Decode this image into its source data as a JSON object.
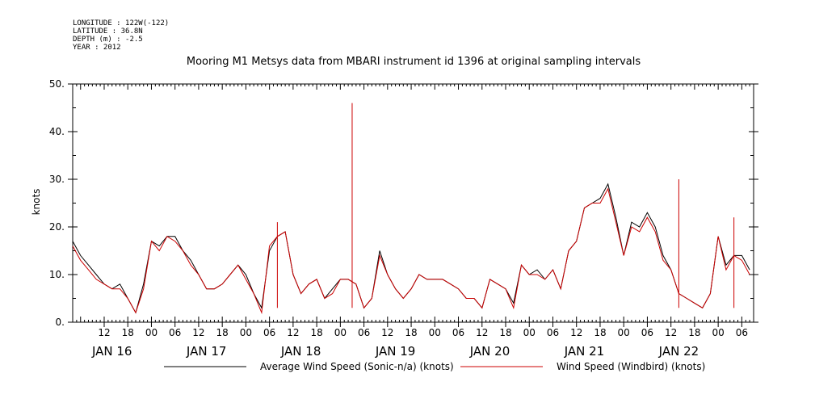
{
  "meta": {
    "longitude": "LONGITUDE : 122W(-122)",
    "latitude": "LATITUDE : 36.8N",
    "depth": "DEPTH (m) : -2.5",
    "year": "YEAR : 2012"
  },
  "chart_data": {
    "type": "line",
    "title": "Mooring M1 Metsys data from MBARI instrument id 1396 at original sampling intervals",
    "xlabel": "",
    "ylabel": "knots",
    "ylim": [
      0,
      50
    ],
    "xlim_hours_since_jan16_00": [
      -20,
      153
    ],
    "yticks": [
      "0.",
      "10.",
      "20.",
      "30.",
      "40.",
      "50."
    ],
    "xticks": [
      "12",
      "18",
      "00",
      "06",
      "12",
      "18",
      "00",
      "06",
      "12",
      "18",
      "00",
      "06",
      "12",
      "18",
      "00",
      "06",
      "12",
      "18",
      "00",
      "06",
      "12",
      "18",
      "00",
      "06",
      "12",
      "18",
      "00",
      "06",
      "12",
      "18",
      "00"
    ],
    "day_labels": [
      "JAN 16",
      "JAN 17",
      "JAN 18",
      "JAN 19",
      "JAN 20",
      "JAN 21",
      "JAN 22"
    ],
    "grid": false,
    "legend_position": "bottom",
    "series": [
      {
        "name": "Average Wind Speed (Sonic-n/a) (knots)",
        "color": "#000000",
        "x": [
          -20,
          -18,
          -16,
          -14,
          -12,
          -10,
          -8,
          -6,
          -4,
          -2,
          0,
          2,
          4,
          6,
          8,
          10,
          12,
          14,
          16,
          18,
          20,
          22,
          24,
          26,
          28,
          30,
          32,
          34,
          36,
          38,
          40,
          42,
          44,
          46,
          48,
          50,
          52,
          54,
          56,
          58,
          60,
          62,
          64,
          66,
          68,
          70,
          72,
          74,
          76,
          78,
          80,
          82,
          84,
          86,
          88,
          90,
          92,
          94,
          96,
          98,
          100,
          102,
          104,
          106,
          108,
          110,
          112,
          114,
          116,
          118,
          120,
          122,
          124,
          126,
          128,
          130,
          132,
          134,
          136,
          138,
          140,
          142,
          144,
          146,
          148,
          150,
          152
        ],
        "y": [
          17,
          14,
          12,
          10,
          8,
          7,
          8,
          5,
          2,
          8,
          17,
          16,
          18,
          18,
          15,
          13,
          10,
          7,
          7,
          8,
          10,
          12,
          10,
          6,
          3,
          15,
          18,
          19,
          10,
          6,
          8,
          9,
          5,
          7,
          9,
          9,
          8,
          3,
          5,
          15,
          10,
          7,
          5,
          7,
          10,
          9,
          9,
          9,
          8,
          7,
          5,
          5,
          3,
          9,
          8,
          7,
          4,
          12,
          10,
          11,
          9,
          11,
          7,
          15,
          17,
          24,
          25,
          26,
          29,
          22,
          14,
          21,
          20,
          23,
          20,
          14,
          11,
          6,
          5,
          4,
          3,
          6,
          18,
          12,
          14,
          14,
          11
        ]
      },
      {
        "name": "Wind Speed (Windbird) (knots)",
        "color": "#cc0000",
        "x": [
          -20,
          -18,
          -16,
          -14,
          -12,
          -10,
          -8,
          -6,
          -4,
          -2,
          0,
          2,
          4,
          6,
          8,
          10,
          12,
          14,
          16,
          18,
          20,
          22,
          24,
          26,
          28,
          30,
          32,
          34,
          36,
          38,
          40,
          42,
          44,
          46,
          48,
          50,
          52,
          54,
          56,
          58,
          60,
          62,
          64,
          66,
          68,
          70,
          72,
          74,
          76,
          78,
          80,
          82,
          84,
          86,
          88,
          90,
          92,
          94,
          96,
          98,
          100,
          102,
          104,
          106,
          108,
          110,
          112,
          114,
          116,
          118,
          120,
          122,
          124,
          126,
          128,
          130,
          132,
          134,
          136,
          138,
          140,
          142,
          144,
          146,
          148,
          150,
          152
        ],
        "y": [
          16,
          13,
          11,
          9,
          8,
          7,
          7,
          5,
          2,
          7,
          17,
          15,
          18,
          17,
          15,
          12,
          10,
          7,
          7,
          8,
          10,
          12,
          9,
          6,
          2,
          16,
          18,
          19,
          10,
          6,
          8,
          9,
          5,
          6,
          9,
          9,
          8,
          3,
          5,
          14,
          10,
          7,
          5,
          7,
          10,
          9,
          9,
          9,
          8,
          7,
          5,
          5,
          3,
          9,
          8,
          7,
          3,
          12,
          10,
          10,
          9,
          11,
          7,
          15,
          17,
          24,
          25,
          25,
          28,
          21,
          14,
          20,
          19,
          22,
          19,
          13,
          11,
          6,
          5,
          4,
          3,
          6,
          18,
          11,
          14,
          13,
          10
        ]
      }
    ],
    "spikes": [
      {
        "series": "Wind Speed (Windbird) (knots)",
        "x": 51,
        "y": 46
      },
      {
        "series": "Wind Speed (Windbird) (knots)",
        "x": 134,
        "y": 30
      },
      {
        "series": "Wind Speed (Windbird) (knots)",
        "x": 32,
        "y": 21
      },
      {
        "series": "Wind Speed (Windbird) (knots)",
        "x": 148,
        "y": 22
      }
    ]
  }
}
